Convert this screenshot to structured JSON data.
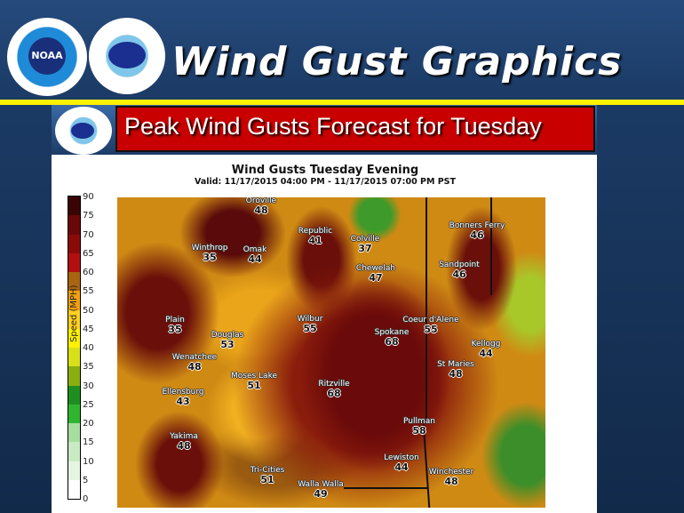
{
  "header": {
    "title": "Wind Gust Graphics",
    "logos": [
      "NOAA",
      "National Weather Service"
    ],
    "noaa_text": "NOAA"
  },
  "banner": {
    "title": "Peak Wind Gusts Forecast for Tuesday"
  },
  "chart": {
    "title": "Wind Gusts Tuesday Evening",
    "subtitle": "Valid: 11/17/2015 04:00 PM - 11/17/2015 07:00 PM PST",
    "colorbar": {
      "label": "Speed (MPH)",
      "ticks": [
        "0",
        "5",
        "10",
        "15",
        "20",
        "25",
        "30",
        "35",
        "40",
        "45",
        "50",
        "55",
        "60",
        "65",
        "70",
        "75",
        "90"
      ],
      "colors": [
        "#ffffff",
        "#e6f5e0",
        "#c8ebc4",
        "#a6dea0",
        "#2fb52f",
        "#1e8f1e",
        "#8aae10",
        "#d8e018",
        "#fff200",
        "#ffd020",
        "#f0a010",
        "#a86410",
        "#b01010",
        "#8a0a0a",
        "#6a0808",
        "#3a0404"
      ]
    },
    "cities": [
      {
        "name": "Oroville",
        "value": "48"
      },
      {
        "name": "Republic",
        "value": "41"
      },
      {
        "name": "Winthrop",
        "value": "35"
      },
      {
        "name": "Omak",
        "value": "44"
      },
      {
        "name": "Colville",
        "value": "37"
      },
      {
        "name": "Bonners Ferry",
        "value": "46"
      },
      {
        "name": "Chewelah",
        "value": "47"
      },
      {
        "name": "Sandpoint",
        "value": "46"
      },
      {
        "name": "Plain",
        "value": "35"
      },
      {
        "name": "Wilbur",
        "value": "55"
      },
      {
        "name": "Coeur d'Alene",
        "value": "55"
      },
      {
        "name": "Douglas",
        "value": "53"
      },
      {
        "name": "Spokane",
        "value": "68"
      },
      {
        "name": "Kellogg",
        "value": "44"
      },
      {
        "name": "Wenatchee",
        "value": "48"
      },
      {
        "name": "St Maries",
        "value": "48"
      },
      {
        "name": "Moses Lake",
        "value": "51"
      },
      {
        "name": "Ritzville",
        "value": "68"
      },
      {
        "name": "Ellensburg",
        "value": "43"
      },
      {
        "name": "Pullman",
        "value": "58"
      },
      {
        "name": "Yakima",
        "value": "48"
      },
      {
        "name": "Lewiston",
        "value": "44"
      },
      {
        "name": "Tri-Cities",
        "value": "51"
      },
      {
        "name": "Winchester",
        "value": "48"
      },
      {
        "name": "Walla Walla",
        "value": "49"
      }
    ]
  }
}
